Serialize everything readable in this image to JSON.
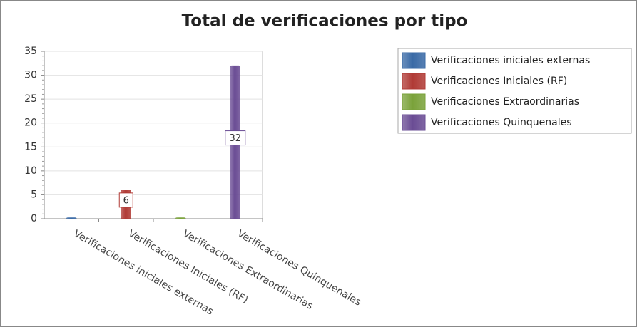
{
  "chart_data": {
    "type": "bar",
    "title": "Total de verificaciones por tipo",
    "categories": [
      "Verificaciones iniciales externas",
      "Verificaciones Iniciales (RF)",
      "Verificaciones Extraordinarias",
      "Verificaciones Quinquenales"
    ],
    "values": [
      0,
      6,
      0,
      32
    ],
    "colors": [
      "#3a6aa6",
      "#b03a35",
      "#7aa23a",
      "#6a4c94"
    ],
    "ylim": [
      0,
      35
    ],
    "yticks": [
      0,
      5,
      10,
      15,
      20,
      25,
      30,
      35
    ],
    "grid": true,
    "legend": "top-right"
  }
}
